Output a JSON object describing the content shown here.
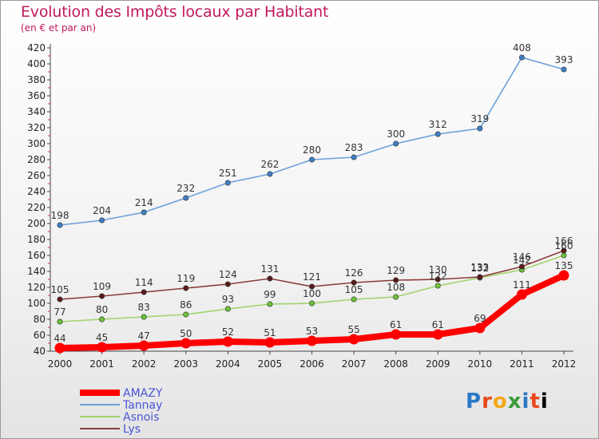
{
  "header": {
    "title": "Evolution des Impôts locaux par Habitant",
    "subtitle": "(en € et par an)"
  },
  "logo": {
    "text": "Proxiti"
  },
  "chart_data": {
    "type": "line",
    "title": "Evolution des Impôts locaux par Habitant",
    "subtitle": "(en € et par an)",
    "xlabel": "",
    "ylabel": "",
    "x": [
      "2000",
      "2001",
      "2002",
      "2003",
      "2004",
      "2005",
      "2006",
      "2007",
      "2008",
      "2009",
      "2010",
      "2011",
      "2012"
    ],
    "ylim": [
      40,
      420
    ],
    "yticks": [
      40,
      60,
      80,
      100,
      120,
      140,
      160,
      180,
      200,
      220,
      240,
      260,
      280,
      300,
      320,
      340,
      360,
      380,
      400,
      420
    ],
    "grid": false,
    "legend_position": "bottom-left",
    "series": [
      {
        "name": "AMAZY",
        "color": "#ff0000",
        "emphasis": true,
        "values": [
          44,
          45,
          47,
          50,
          52,
          51,
          53,
          55,
          61,
          61,
          69,
          111,
          135
        ],
        "labels": [
          "44",
          "45",
          "47",
          "50",
          "52",
          "51",
          "53",
          "55",
          "61",
          "61",
          "69",
          "111",
          "135"
        ]
      },
      {
        "name": "Tannay",
        "color": "#6a9fd8",
        "marker_color": "#3f7fc4",
        "values": [
          198,
          204,
          214,
          232,
          251,
          262,
          280,
          283,
          300,
          312,
          319,
          408,
          393
        ],
        "labels": [
          "198",
          "204",
          "214",
          "232",
          "251",
          "262",
          "280",
          "283",
          "300",
          "312",
          "319",
          "408",
          "393"
        ]
      },
      {
        "name": "Asnois",
        "color": "#9ed36a",
        "marker_color": "#6cc23a",
        "values": [
          77,
          80,
          83,
          86,
          93,
          99,
          100,
          105,
          108,
          122,
          132,
          142,
          160
        ],
        "labels": [
          "77",
          "80",
          "83",
          "86",
          "93",
          "99",
          "100",
          "105",
          "108",
          "122",
          "132",
          "142",
          "160"
        ]
      },
      {
        "name": "Lys",
        "color": "#8a3a3a",
        "marker_color": "#5a1a1a",
        "values": [
          105,
          109,
          114,
          119,
          124,
          131,
          121,
          126,
          129,
          130,
          133,
          146,
          166
        ],
        "labels": [
          "105",
          "109",
          "114",
          "119",
          "124",
          "131",
          "121",
          "126",
          "129",
          "130",
          "133",
          "146",
          "166"
        ]
      }
    ]
  }
}
